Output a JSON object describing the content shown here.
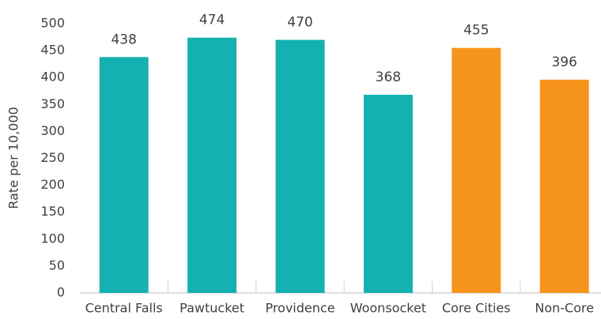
{
  "chart_data": {
    "type": "bar",
    "y_label": "Rate per 10,000",
    "categories": [
      "Central Falls",
      "Pawtucket",
      "Providence",
      "Woonsocket",
      "Core Cities",
      "Non-Core"
    ],
    "values": [
      438,
      474,
      470,
      368,
      455,
      396
    ],
    "colors": [
      "#14b1b0",
      "#14b1b0",
      "#14b1b0",
      "#14b1b0",
      "#f7941d",
      "#f7941d"
    ],
    "ylim": [
      0,
      500
    ],
    "yticks": [
      0,
      50,
      100,
      150,
      200,
      250,
      300,
      350,
      400,
      450,
      500
    ],
    "grid": false
  }
}
